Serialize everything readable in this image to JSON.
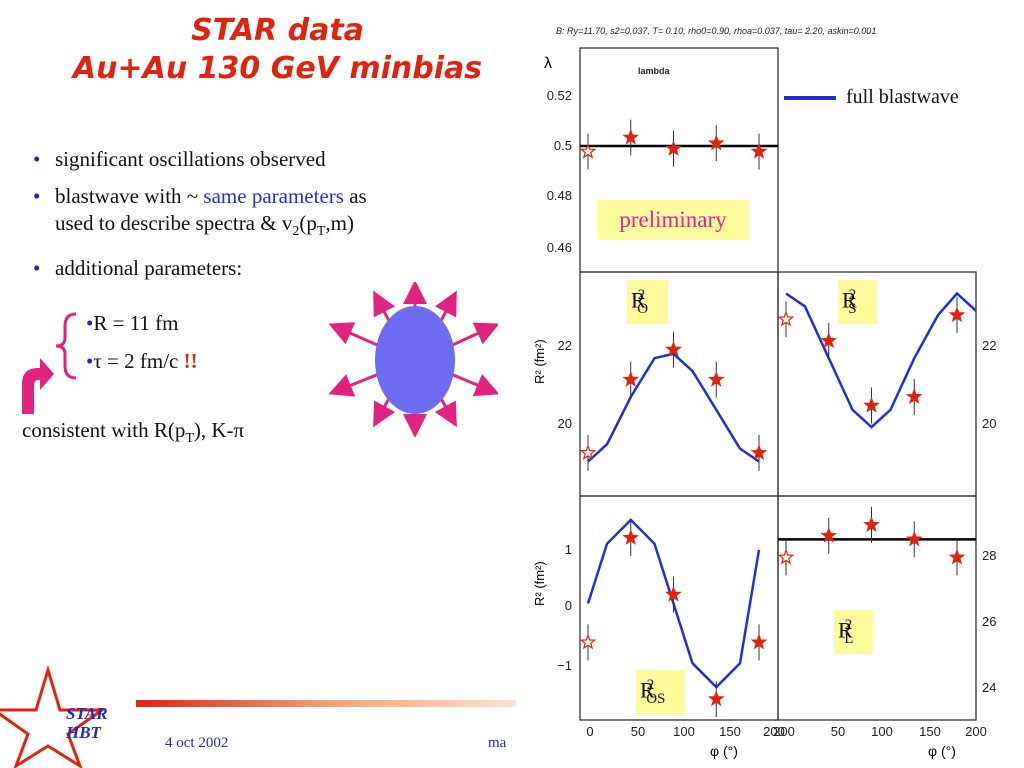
{
  "title": {
    "line1": "STAR data",
    "line2": "Au+Au 130 GeV minbias"
  },
  "bullets": [
    {
      "text": "significant oscillations observed"
    },
    {
      "before": "blastwave with ~ ",
      "highlight": "same parameters",
      "after": " as",
      "line2a": "used to describe spectra & v",
      "line2sub1": "2",
      "line2b": "(p",
      "line2sub2": "T",
      "line2c": ",m)"
    },
    {
      "text": "additional parameters:"
    }
  ],
  "subbullets": [
    {
      "text": "R = 11 fm"
    },
    {
      "text": "τ = 2 fm/c ",
      "emphasis": "!!"
    }
  ],
  "consistent": {
    "a": "consistent with R(p",
    "sub": "T",
    "b": "), K-π"
  },
  "footer": {
    "date": "4 oct 2002",
    "truncated": "ma",
    "logo_line1": "STAR",
    "logo_line2": "HBT"
  },
  "plot": {
    "header": "B: Ry=11.70, s2=0.037, T= 0.10, rho0=0.90, rhoa=0.037, tau= 2.20, askin=0.001",
    "lambda_label": "lambda",
    "preliminary": "preliminary",
    "legend": "full blastwave",
    "panel_labels": {
      "ro": {
        "base": "R",
        "sup": "2",
        "sub": "O"
      },
      "rs": {
        "base": "R",
        "sup": "2",
        "sub": "S"
      },
      "ros": {
        "base": "R",
        "sup": "2",
        "sub": "OS"
      },
      "rl": {
        "base": "R",
        "sup": "2",
        "sub": "L"
      }
    },
    "axis": {
      "lambda_title": "λ",
      "r2_title": "R² (fm²)",
      "x_title": "φ (°)",
      "lambda_ticks": [
        "0.52",
        "0.5",
        "0.48",
        "0.46"
      ],
      "ro_ticks": [
        "22",
        "20"
      ],
      "rs_ticks": [
        "22",
        "20"
      ],
      "ros_ticks": [
        "1",
        "0",
        "−1"
      ],
      "rl_ticks": [
        "28",
        "26",
        "24"
      ],
      "x_ticks_left": [
        "0",
        "50",
        "100",
        "150",
        "200"
      ],
      "x_ticks_right": [
        "200",
        "50",
        "100",
        "150",
        "200"
      ]
    },
    "colors": {
      "data": "#e0230e",
      "fit": "#1f2fd6",
      "line": "#000000"
    }
  },
  "chart_data": [
    {
      "type": "scatter",
      "panel": "lambda",
      "x": [
        0,
        45,
        90,
        135,
        180
      ],
      "y": [
        0.498,
        0.503,
        0.499,
        0.501,
        0.498
      ],
      "fit_constant": 0.5,
      "ylim": [
        0.455,
        0.535
      ],
      "xlim": [
        0,
        180
      ]
    },
    {
      "type": "line",
      "panel": "R_O^2",
      "x": [
        0,
        45,
        90,
        135,
        180
      ],
      "y": [
        19.6,
        21.3,
        22.0,
        21.3,
        19.6
      ],
      "fit": {
        "x": [
          0,
          20,
          45,
          70,
          90,
          110,
          135,
          160,
          180
        ],
        "y": [
          19.4,
          19.8,
          20.9,
          21.8,
          21.9,
          21.5,
          20.6,
          19.7,
          19.4
        ]
      },
      "ylim": [
        18.6,
        23.8
      ],
      "xlim": [
        0,
        180
      ]
    },
    {
      "type": "line",
      "panel": "R_S^2",
      "x": [
        0,
        45,
        90,
        135,
        180
      ],
      "y": [
        22.7,
        22.2,
        20.7,
        20.9,
        22.8
      ],
      "fit": {
        "x": [
          0,
          20,
          45,
          70,
          90,
          110,
          135,
          160,
          180,
          200
        ],
        "y": [
          23.3,
          23.0,
          21.8,
          20.6,
          20.2,
          20.6,
          21.8,
          22.8,
          23.3,
          22.9
        ]
      },
      "ylim": [
        18.6,
        23.8
      ],
      "xlim": [
        0,
        200
      ]
    },
    {
      "type": "line",
      "panel": "R_OS^2",
      "x": [
        0,
        45,
        90,
        135,
        180
      ],
      "y": [
        -0.65,
        1.1,
        0.15,
        -1.6,
        -0.65
      ],
      "fit": {
        "x": [
          0,
          20,
          45,
          70,
          90,
          110,
          135,
          160,
          180
        ],
        "y": [
          0.0,
          1.0,
          1.4,
          1.0,
          0.0,
          -1.0,
          -1.4,
          -1.0,
          0.9
        ]
      },
      "ylim": [
        -1.95,
        1.8
      ],
      "xlim": [
        0,
        180
      ]
    },
    {
      "type": "scatter",
      "panel": "R_L^2",
      "x": [
        0,
        45,
        90,
        135,
        180
      ],
      "y": [
        27.6,
        28.2,
        28.5,
        28.1,
        27.6
      ],
      "fit_constant": 28.1,
      "ylim": [
        23.1,
        29.3
      ],
      "xlim": [
        0,
        200
      ]
    }
  ]
}
